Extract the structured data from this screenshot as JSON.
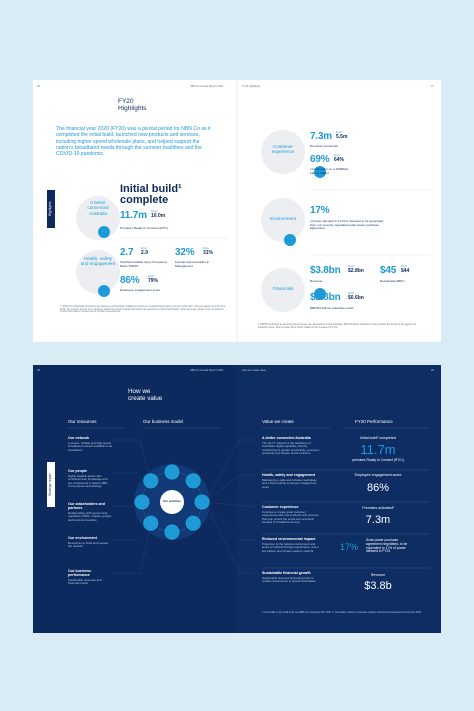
{
  "spread_1": {
    "left_page": {
      "page_number": "26",
      "running_header": "NBN Co Annual Report 2020",
      "title": "FY20 Highlights",
      "intro": "The financial year 2020 (FY20) was a pivotal period for NBN Co as it completed the initial build, launched new products and services, including higher speed wholesale plans, and helped support the nation's broadband needs through the summer bushfires and the COVID-19 pandemic.",
      "side_tab": "Highlights",
      "sections": [
        {
          "label": "A better connected Australia",
          "headline": "Initial build¹ complete",
          "metrics": [
            {
              "value": "11.7m",
              "from_label": "From",
              "from": "10.0m",
              "caption": "Premises Ready to Connect (RTC)"
            }
          ]
        },
        {
          "label": "Health, safety and engagement",
          "metrics": [
            {
              "value": "2.7",
              "from_label": "From",
              "from": "2.9",
              "caption": "Total Recordable Injury Frequency Rate (TRIFR)"
            },
            {
              "value": "32%",
              "from_label": "From",
              "from": "31%",
              "caption": "Female representation in Management"
            },
            {
              "value": "86%",
              "from_label": "From",
              "from": "79%",
              "caption": "Employee engagement score"
            }
          ]
        }
      ],
      "footnotes": "1. NBN Co's initial build completion was defined as all standard installations premises in Australia being able to connect to the nbn™ access network as at 30 June 2020. The success and the key milestones within this period of initial build activity are described in this Annual Report. Some premises remain under construction or will not be able to connect due to complex arrangements."
    },
    "right_page": {
      "running_header": "FY20 Highlights",
      "page_number": "27",
      "sections": [
        {
          "label": "Customer experience",
          "metrics": [
            {
              "value": "7.3m",
              "from_label": "From",
              "from": "5.5m",
              "caption": "Premises connected"
            },
            {
              "value": "69%",
              "from_label": "From",
              "from": "64%",
              "caption": "of customers on a 100Mbps plan or higher"
            }
          ]
        },
        {
          "label": "Environment",
          "metrics": [
            {
              "value": "17%",
              "caption": "of power demand in FY23 to forecast to be generated from our recently negotiated solar power purchase agreement"
            }
          ]
        },
        {
          "label": "Financials",
          "metrics": [
            {
              "value": "$3.8bn",
              "from_label": "From",
              "from": "$2.8bn",
              "caption": "Revenue"
            },
            {
              "value": "$45",
              "from_label": "From",
              "from": "$44",
              "caption": "Residential ARPU"
            },
            {
              "value": "$1.8bn",
              "from_label": "From",
              "from": "$0.6bn",
              "caption": "EBITDA before subscriber costs"
            }
          ]
        }
      ],
      "footnotes": "1. EBITDA is defined as earnings before interest, tax, depreciation and amortisation. EBITDA before subscriber costs excludes the impact of the payment of subscriber costs. Refer to page 48 for further details on this measure for FY20."
    }
  },
  "spread_2": {
    "left_page": {
      "page_number": "28",
      "running_header": "NBN Co Annual Report 2020",
      "title": "How we create value",
      "side_tab": "Strategic report",
      "resources_heading": "Our resources",
      "model_heading": "Our business model",
      "activities_label": "Our activities",
      "resources": [
        {
          "title": "Our network",
          "text": "A secure, reliable and high-speed broadband network available to all Australians"
        },
        {
          "title": "Our people",
          "text": "Highly capable teams who contribute their knowledge and are empowered to deliver NBN Co's purpose and strategy"
        },
        {
          "title": "Our stakeholders and partners",
          "text": "Relationships with government, regulators, RSPs, industry groups and local communities"
        },
        {
          "title": "Our environment",
          "text": "Resources to build and operate the network"
        },
        {
          "title": "Our business performance",
          "text": "Sustainable revenues and financial results"
        }
      ]
    },
    "right_page": {
      "running_header": "How we create value",
      "page_number": "29",
      "value_heading": "Value we create",
      "performance_heading": "FY20 Performance",
      "rows": [
        {
          "title": "A better connected Australia",
          "text": "The nbn™ network is the backbone of Australia's digital capability, directly contributing to greater productivity, economic prosperity and deeper social inclusion",
          "kpi_label": "Initial build¹ completed",
          "kpi_value": "11.7m",
          "kpi_note": "premises Ready to Connect (RTC²)"
        },
        {
          "title": "Health, safety and engagement",
          "text": "Maintaining a safe and inclusive workplace and a high-quartile employee engagement score",
          "kpi_label": "Employee engagement score",
          "kpi_value": "86%"
        },
        {
          "title": "Customer experience",
          "text": "Continue to create great customer experiences with new products and services that help unlock the social and economic benefits of broadband access",
          "kpi_label": "Premises activated²",
          "kpi_value": "7.3m"
        },
        {
          "title": "Reduced environmental impact",
          "text": "Protection of the natural environment and areas of cultural heritage significance, and a low carbon and climate resilient network",
          "kpi_value": "17%",
          "kpi_note": "Solar power purchase agreement negotiated, to be equivalent to 17% of power demand in FY23"
        },
        {
          "title": "Sustainable financial growth",
          "text": "Sustainable business financial growth to enable reinvestment to benefit Australians",
          "kpi_label": "Revenue",
          "kpi_value": "$3.8b"
        }
      ],
      "footnotes": "1. For details on the initial build, see NBN Co's Corporate Plan 2021. 2. Cumulative number of premises ready to connect and connected as at 30 June 2020."
    }
  }
}
